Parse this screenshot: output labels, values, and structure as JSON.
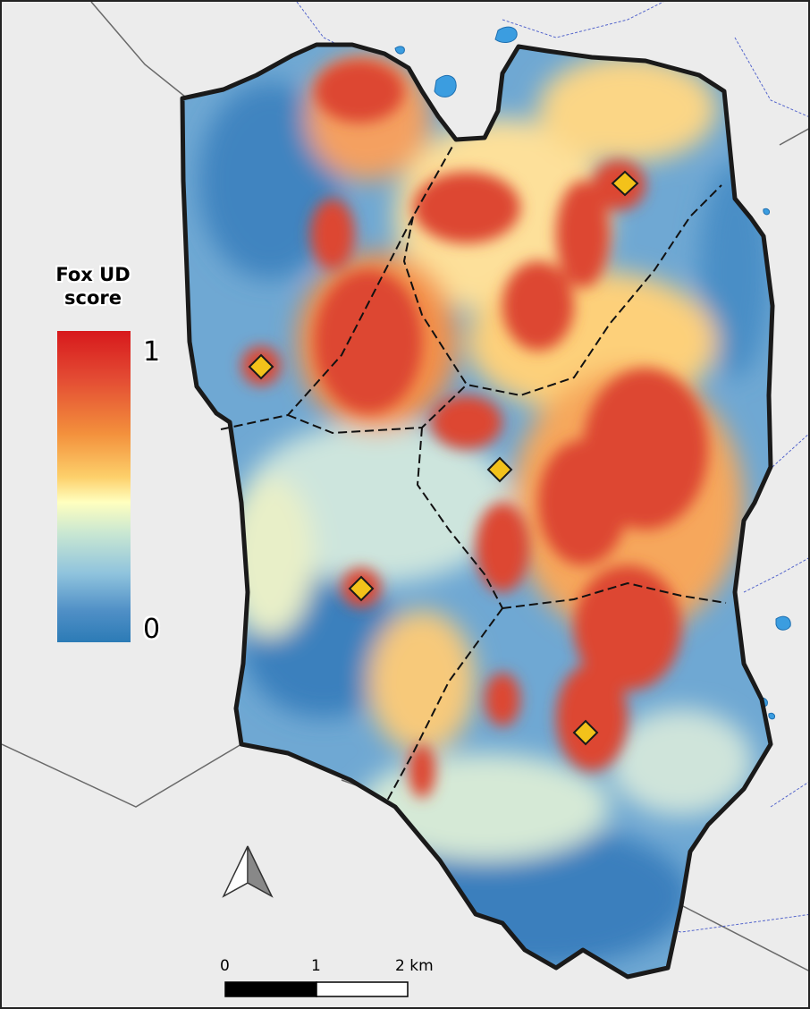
{
  "legend": {
    "title_line1": "Fox UD",
    "title_line2": "score",
    "max_label": "1",
    "min_label": "0",
    "colors": [
      "#d7191c",
      "#f3903c",
      "#fdd06b",
      "#ffffbf",
      "#8fc3dd",
      "#2c7bb6"
    ]
  },
  "scale_bar": {
    "labels": [
      "0",
      "1",
      "2 km"
    ]
  },
  "icons": {
    "north_arrow": "north-arrow-icon",
    "site_marker": "diamond-icon"
  },
  "colors": {
    "background": "#ececec",
    "water": "#3b9de0",
    "marker_fill": "#f3c21a",
    "boundary": "#1a1a1a"
  }
}
